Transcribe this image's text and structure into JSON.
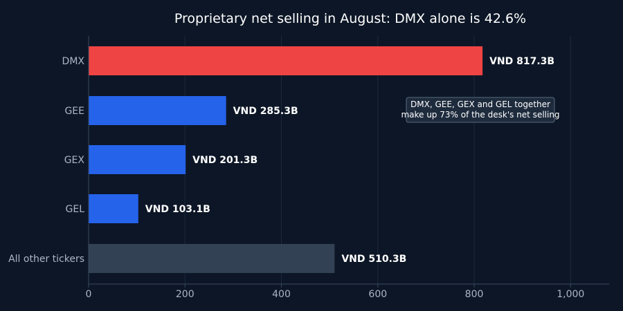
{
  "chart_data": {
    "type": "bar",
    "orientation": "horizontal",
    "title": "Proprietary net selling in August: DMX alone is 42.6%",
    "categories": [
      "DMX",
      "GEE",
      "GEX",
      "GEL",
      "All other tickers"
    ],
    "values": [
      817.3,
      285.3,
      201.3,
      103.1,
      510.3
    ],
    "value_labels": [
      "VND 817.3B",
      "VND 285.3B",
      "VND 201.3B",
      "VND 103.1B",
      "VND 510.3B"
    ],
    "bar_colors": [
      "#ef4444",
      "#2563eb",
      "#2563eb",
      "#2563eb",
      "#334155"
    ],
    "xlim": [
      0,
      1080
    ],
    "xticks": [
      0,
      200,
      400,
      600,
      800,
      1000
    ],
    "xtick_labels": [
      "0",
      "200",
      "400",
      "600",
      "800",
      "1,000"
    ],
    "xlabel": "",
    "ylabel": "",
    "grid": true,
    "annotation": {
      "lines": [
        "DMX, GEE, GEX and GEL together",
        "make up 73% of the desk's net selling"
      ]
    },
    "colors": {
      "background": "#0c1626",
      "grid": "#1c2a3d",
      "axis": "#3a4a60",
      "text": "#ffffff",
      "tick_text": "#aab6c6",
      "annotation_fill": "#1e2b3d",
      "annotation_border": "#5a6a80"
    }
  }
}
